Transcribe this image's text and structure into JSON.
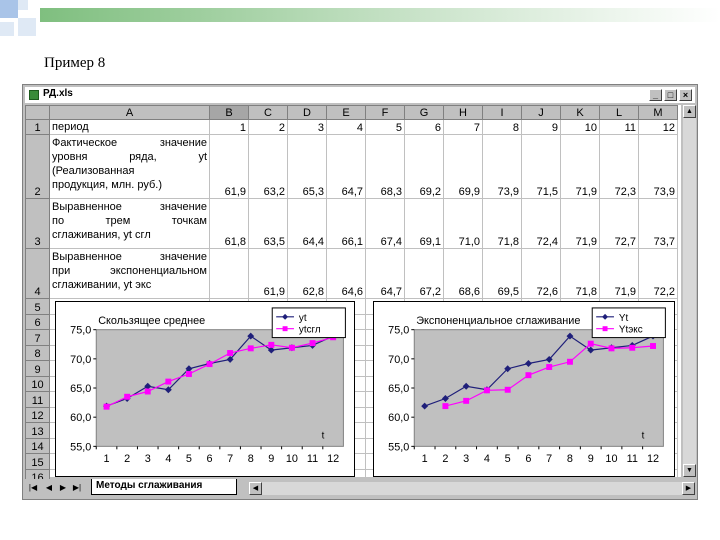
{
  "slide_title": "Пример 8",
  "window": {
    "title": "РД.xls"
  },
  "columns": [
    "A",
    "B",
    "C",
    "D",
    "E",
    "F",
    "G",
    "H",
    "I",
    "J",
    "K",
    "L",
    "M"
  ],
  "selected_column": "B",
  "rows": [
    {
      "num": "1",
      "label_lines": [
        "период"
      ],
      "values": [
        "1",
        "2",
        "3",
        "4",
        "5",
        "6",
        "7",
        "8",
        "9",
        "10",
        "11",
        "12"
      ]
    },
    {
      "num": "2",
      "label_lines": [
        "Фактическое значение",
        "уровня ряда, yt",
        "(Реализованная",
        "продукция, млн. руб.)"
      ],
      "values": [
        "61,9",
        "63,2",
        "65,3",
        "64,7",
        "68,3",
        "69,2",
        "69,9",
        "73,9",
        "71,5",
        "71,9",
        "72,3",
        "73,9"
      ]
    },
    {
      "num": "3",
      "label_lines": [
        "Выравненное значение",
        "по трем точкам",
        "сглаживания, yt сгл"
      ],
      "values": [
        "61,8",
        "63,5",
        "64,4",
        "66,1",
        "67,4",
        "69,1",
        "71,0",
        "71,8",
        "72,4",
        "71,9",
        "72,7",
        "73,7"
      ]
    },
    {
      "num": "4",
      "label_lines": [
        "Выравненное значение",
        "при экспоненциальном",
        "сглаживании, yt экс"
      ],
      "values": [
        "",
        "61,9",
        "62,8",
        "64,6",
        "64,7",
        "67,2",
        "68,6",
        "69,5",
        "72,6",
        "71,8",
        "71,9",
        "72,2"
      ]
    },
    {
      "num": "5"
    },
    {
      "num": "6"
    },
    {
      "num": "7"
    },
    {
      "num": "8"
    },
    {
      "num": "9"
    },
    {
      "num": "10"
    },
    {
      "num": "11"
    },
    {
      "num": "12"
    },
    {
      "num": "13"
    },
    {
      "num": "14"
    },
    {
      "num": "15"
    },
    {
      "num": "16"
    }
  ],
  "sheet_tab": "Методы сглаживания",
  "chart_data": [
    {
      "type": "line",
      "title": "Скользящее среднее",
      "x": [
        1,
        2,
        3,
        4,
        5,
        6,
        7,
        8,
        9,
        10,
        11,
        12
      ],
      "series": [
        {
          "name": "yt",
          "color": "#1f1f7a",
          "marker": "diamond",
          "values": [
            61.9,
            63.2,
            65.3,
            64.7,
            68.3,
            69.2,
            69.9,
            73.9,
            71.5,
            71.9,
            72.3,
            73.9
          ]
        },
        {
          "name": "ytсгл",
          "color": "#ff00ff",
          "marker": "square",
          "values": [
            61.8,
            63.5,
            64.4,
            66.1,
            67.4,
            69.1,
            71.0,
            71.8,
            72.4,
            71.9,
            72.7,
            73.7
          ]
        }
      ],
      "ylim": [
        55,
        75
      ],
      "yticks": [
        "55,0",
        "60,0",
        "65,0",
        "70,0",
        "75,0"
      ],
      "xlabel": "t",
      "legend": "top-right",
      "plot_bg": "#c0c0c0"
    },
    {
      "type": "line",
      "title": "Экспоненциальное сглаживание",
      "x": [
        1,
        2,
        3,
        4,
        5,
        6,
        7,
        8,
        9,
        10,
        11,
        12
      ],
      "series": [
        {
          "name": "Yt",
          "color": "#1f1f7a",
          "marker": "diamond",
          "values": [
            61.9,
            63.2,
            65.3,
            64.7,
            68.3,
            69.2,
            69.9,
            73.9,
            71.5,
            71.9,
            72.3,
            73.9
          ]
        },
        {
          "name": "Ytэкс",
          "color": "#ff00ff",
          "marker": "square",
          "values": [
            null,
            61.9,
            62.8,
            64.6,
            64.7,
            67.2,
            68.6,
            69.5,
            72.6,
            71.8,
            71.9,
            72.2
          ]
        }
      ],
      "ylim": [
        55,
        75
      ],
      "yticks": [
        "55,0",
        "60,0",
        "65,0",
        "70,0",
        "75,0"
      ],
      "xlabel": "t",
      "legend": "top-right",
      "plot_bg": "#c0c0c0"
    }
  ]
}
